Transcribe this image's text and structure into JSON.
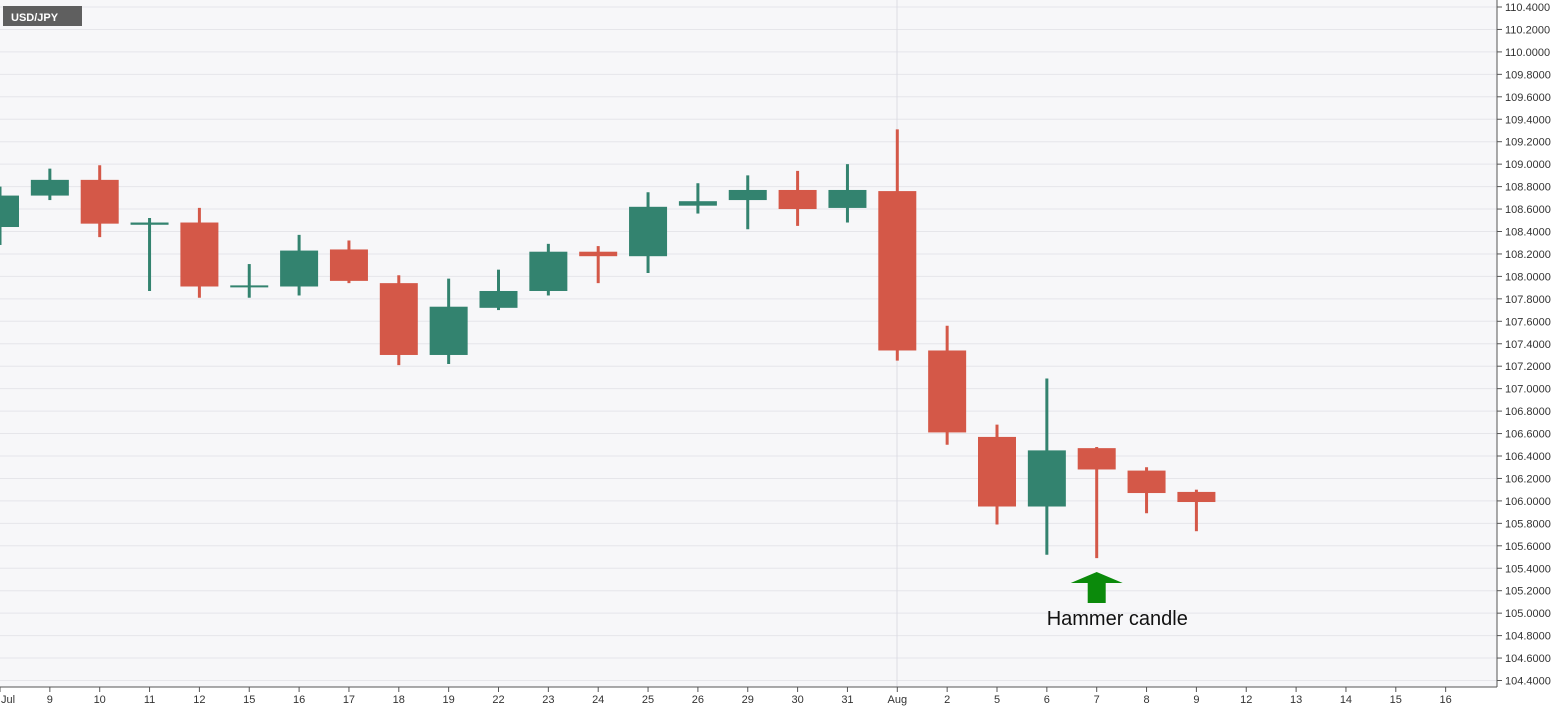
{
  "chart_data": {
    "type": "candlestick",
    "symbol": "USD/JPY",
    "colors": {
      "up": "#33836f",
      "down": "#d45848",
      "background": "#f7f7f9",
      "grid": "#e6e6ea",
      "symbol_badge": "#5f5f5f",
      "arrow": "#0b8a0b"
    },
    "y_range": [
      104.3,
      110.45
    ],
    "y_ticks": [
      "110.4000",
      "110.2000",
      "110.0000",
      "109.8000",
      "109.6000",
      "109.4000",
      "109.2000",
      "109.0000",
      "108.8000",
      "108.6000",
      "108.4000",
      "108.2000",
      "108.0000",
      "107.8000",
      "107.6000",
      "107.4000",
      "107.2000",
      "107.0000",
      "106.8000",
      "106.6000",
      "106.4000",
      "106.2000",
      "106.0000",
      "105.8000",
      "105.6000",
      "105.4000",
      "105.2000",
      "105.0000",
      "104.8000",
      "104.6000",
      "104.4000"
    ],
    "x_labels": [
      "Jul",
      "9",
      "10",
      "11",
      "12",
      "15",
      "16",
      "17",
      "18",
      "19",
      "22",
      "23",
      "24",
      "25",
      "26",
      "29",
      "30",
      "31",
      "Aug",
      "2",
      "5",
      "6",
      "7",
      "8",
      "9",
      "12",
      "13",
      "14",
      "15",
      "16"
    ],
    "candles": [
      {
        "x": "8",
        "open": 108.44,
        "high": 108.8,
        "low": 108.28,
        "close": 108.72
      },
      {
        "x": "9",
        "open": 108.72,
        "high": 108.96,
        "low": 108.68,
        "close": 108.86
      },
      {
        "x": "10",
        "open": 108.86,
        "high": 108.99,
        "low": 108.35,
        "close": 108.47
      },
      {
        "x": "11",
        "open": 108.46,
        "high": 108.52,
        "low": 107.87,
        "close": 108.48
      },
      {
        "x": "12",
        "open": 108.48,
        "high": 108.61,
        "low": 107.81,
        "close": 107.91
      },
      {
        "x": "15",
        "open": 107.91,
        "high": 108.11,
        "low": 107.81,
        "close": 107.92
      },
      {
        "x": "16",
        "open": 107.91,
        "high": 108.37,
        "low": 107.83,
        "close": 108.23
      },
      {
        "x": "17",
        "open": 108.24,
        "high": 108.32,
        "low": 107.94,
        "close": 107.96
      },
      {
        "x": "18",
        "open": 107.94,
        "high": 108.01,
        "low": 107.21,
        "close": 107.3
      },
      {
        "x": "19",
        "open": 107.3,
        "high": 107.98,
        "low": 107.22,
        "close": 107.73
      },
      {
        "x": "22",
        "open": 107.72,
        "high": 108.06,
        "low": 107.7,
        "close": 107.87
      },
      {
        "x": "23",
        "open": 107.87,
        "high": 108.29,
        "low": 107.83,
        "close": 108.22
      },
      {
        "x": "24",
        "open": 108.22,
        "high": 108.27,
        "low": 107.94,
        "close": 108.18
      },
      {
        "x": "25",
        "open": 108.18,
        "high": 108.75,
        "low": 108.03,
        "close": 108.62
      },
      {
        "x": "26",
        "open": 108.63,
        "high": 108.83,
        "low": 108.56,
        "close": 108.67
      },
      {
        "x": "29",
        "open": 108.68,
        "high": 108.9,
        "low": 108.42,
        "close": 108.77
      },
      {
        "x": "30",
        "open": 108.77,
        "high": 108.94,
        "low": 108.45,
        "close": 108.6
      },
      {
        "x": "31",
        "open": 108.61,
        "high": 109.0,
        "low": 108.48,
        "close": 108.77
      },
      {
        "x": "Aug",
        "open": 108.76,
        "high": 109.31,
        "low": 107.25,
        "close": 107.34
      },
      {
        "x": "2",
        "open": 107.34,
        "high": 107.56,
        "low": 106.5,
        "close": 106.61
      },
      {
        "x": "5",
        "open": 106.57,
        "high": 106.68,
        "low": 105.79,
        "close": 105.95
      },
      {
        "x": "6",
        "open": 105.95,
        "high": 107.09,
        "low": 105.52,
        "close": 106.45
      },
      {
        "x": "7",
        "open": 106.47,
        "high": 106.48,
        "low": 105.49,
        "close": 106.28
      },
      {
        "x": "8",
        "open": 106.27,
        "high": 106.3,
        "low": 105.89,
        "close": 106.07
      },
      {
        "x": "9",
        "open": 106.08,
        "high": 106.1,
        "low": 105.73,
        "close": 105.99
      }
    ],
    "annotations": [
      {
        "text": "Hammer candle",
        "x": "7",
        "arrow": "up"
      }
    ]
  }
}
